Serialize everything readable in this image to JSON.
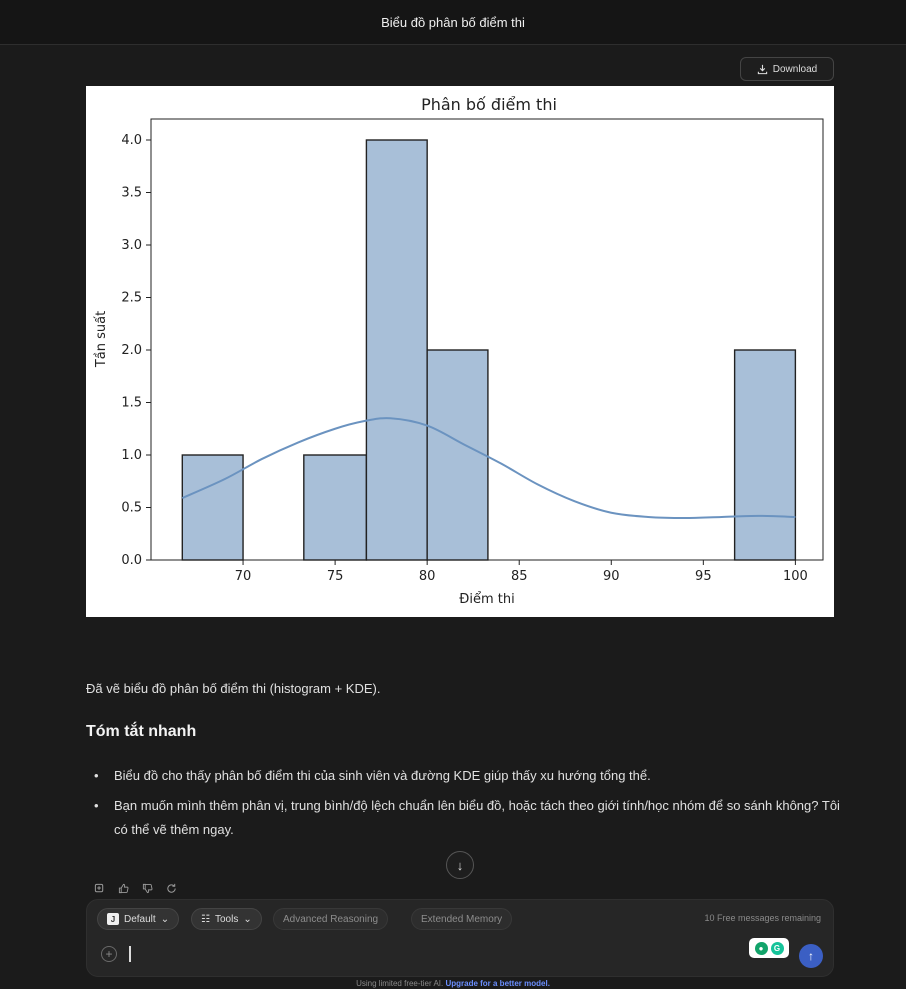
{
  "header": {
    "title": "Biểu đồ phân bố điểm thi"
  },
  "download": {
    "label": "Download",
    "icon": "download-icon"
  },
  "chart_data": {
    "type": "bar",
    "title": "Phân bố điểm thi",
    "xlabel": "Điểm thi",
    "ylabel": "Tần suất",
    "xlim": [
      65,
      101.5
    ],
    "ylim": [
      0,
      4.2
    ],
    "x_ticks": [
      70,
      75,
      80,
      85,
      90,
      95,
      100
    ],
    "y_ticks": [
      0.0,
      0.5,
      1.0,
      1.5,
      2.0,
      2.5,
      3.0,
      3.5,
      4.0
    ],
    "x_tick_labels": [
      "70",
      "75",
      "80",
      "85",
      "90",
      "95",
      "100"
    ],
    "y_tick_labels": [
      "0.0",
      "0.5",
      "1.0",
      "1.5",
      "2.0",
      "2.5",
      "3.0",
      "3.5",
      "4.0"
    ],
    "bins": [
      {
        "x0": 66.7,
        "x1": 70.0,
        "count": 1
      },
      {
        "x0": 70.0,
        "x1": 73.3,
        "count": 0
      },
      {
        "x0": 73.3,
        "x1": 76.7,
        "count": 1
      },
      {
        "x0": 76.7,
        "x1": 80.0,
        "count": 4
      },
      {
        "x0": 80.0,
        "x1": 83.3,
        "count": 2
      },
      {
        "x0": 83.3,
        "x1": 86.7,
        "count": 0
      },
      {
        "x0": 86.7,
        "x1": 90.0,
        "count": 0
      },
      {
        "x0": 90.0,
        "x1": 93.3,
        "count": 0
      },
      {
        "x0": 93.3,
        "x1": 96.7,
        "count": 0
      },
      {
        "x0": 96.7,
        "x1": 100.0,
        "count": 2
      }
    ],
    "kde": {
      "x": [
        66.7,
        69,
        71,
        73,
        75,
        76.5,
        78,
        80,
        82,
        84,
        86,
        88,
        90,
        92,
        94,
        96,
        98,
        100
      ],
      "y": [
        0.59,
        0.77,
        0.96,
        1.12,
        1.25,
        1.32,
        1.35,
        1.28,
        1.1,
        0.92,
        0.72,
        0.56,
        0.45,
        0.41,
        0.4,
        0.41,
        0.42,
        0.41
      ]
    },
    "bar_color": "#a8bfd8",
    "kde_color": "#6b93c0",
    "grid": false,
    "legend": "none"
  },
  "message": {
    "intro": "Đã vẽ biểu đồ phân bố điểm thi (histogram + KDE).",
    "heading": "Tóm tắt nhanh",
    "bullets": [
      "Biểu đồ cho thấy phân bố điểm thi của sinh viên và đường KDE giúp thấy xu hướng tổng thể.",
      "Bạn muốn mình thêm phân vị, trung bình/độ lệch chuẩn lên biểu đồ, hoặc tách theo giới tính/học nhóm để so sánh không? Tôi có thể vẽ thêm ngay."
    ]
  },
  "actions": [
    "copy-icon",
    "thumbs-up-icon",
    "thumbs-down-icon",
    "refresh-icon"
  ],
  "composer": {
    "model_badge": "J",
    "model_label": "Default",
    "tools_label": "Tools",
    "advanced_label": "Advanced Reasoning",
    "memory_label": "Extended Memory",
    "remaining": "10 Free messages remaining"
  },
  "footer": {
    "text": "Using limited free-tier AI.",
    "link": "Upgrade for a better model."
  }
}
